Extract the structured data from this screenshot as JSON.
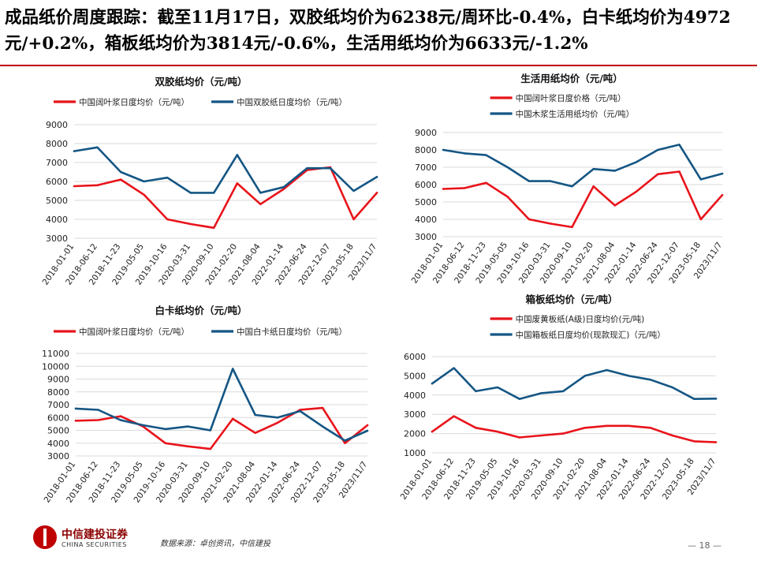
{
  "headline": "成品纸价周度跟踪：截至11月17日，双胶纸均价为6238元/周环比-0.4%，白卡纸均价为4972元/+0.2%，箱板纸均价为3814元/-0.6%，生活用纸均价为6633元/-1.2%",
  "footer": {
    "logo_cn": "中信建投证券",
    "logo_en": "CHINA SECURITIES",
    "source": "数据来源：卓创资讯，中信建投",
    "page": "— 18 —"
  },
  "colors": {
    "red": "#e8141b",
    "blue": "#145684",
    "accent": "#c00000"
  },
  "chart_data": [
    {
      "id": "tl",
      "type": "line",
      "title": "双胶纸均价（元/吨）",
      "x": [
        "2018-01-01",
        "2018-06-12",
        "2018-11-23",
        "2019-05-05",
        "2019-10-16",
        "2020-03-31",
        "2020-09-10",
        "2021-02-20",
        "2021-08-04",
        "2022-01-14",
        "2022-06-24",
        "2022-12-07",
        "2023-05-18",
        "2023/11/7"
      ],
      "ylim": [
        3000,
        9000
      ],
      "yticks": [
        3000,
        4000,
        5000,
        6000,
        7000,
        8000,
        9000
      ],
      "legend_position": "top",
      "series": [
        {
          "name": "中国阔叶浆日度均价（元/吨）",
          "color": "#e8141b",
          "values": [
            5750,
            5800,
            6100,
            5300,
            4000,
            3750,
            3550,
            5900,
            4800,
            5600,
            6600,
            6750,
            4000,
            5400
          ]
        },
        {
          "name": "中国双胶纸日度均价（元/吨）",
          "color": "#145684",
          "values": [
            7600,
            7800,
            6500,
            6000,
            6200,
            5400,
            5400,
            7400,
            5400,
            5700,
            6700,
            6700,
            5500,
            6238
          ]
        }
      ]
    },
    {
      "id": "tr",
      "type": "line",
      "title": "生活用纸均价（元/吨）",
      "x": [
        "2018-01-01",
        "2018-06-12",
        "2018-11-23",
        "2019-05-05",
        "2019-10-16",
        "2020-03-31",
        "2020-09-10",
        "2021-02-20",
        "2021-08-04",
        "2022-01-14",
        "2022-06-24",
        "2022-12-07",
        "2023-05-18",
        "2023/11/7"
      ],
      "ylim": [
        3000,
        9000
      ],
      "yticks": [
        3000,
        4000,
        5000,
        6000,
        7000,
        8000,
        9000
      ],
      "legend_position": "top",
      "series": [
        {
          "name": "中国阔叶浆日度价格（元/吨）",
          "color": "#e8141b",
          "values": [
            5750,
            5800,
            6100,
            5300,
            4000,
            3750,
            3550,
            5900,
            4800,
            5600,
            6600,
            6750,
            4000,
            5400
          ]
        },
        {
          "name": "中国木浆生活用纸均价（元/吨）",
          "color": "#145684",
          "values": [
            8000,
            7800,
            7700,
            7000,
            6200,
            6200,
            5900,
            6900,
            6800,
            7300,
            8000,
            8300,
            6300,
            6633
          ]
        }
      ]
    },
    {
      "id": "bl",
      "type": "line",
      "title": "白卡纸均价（元/吨）",
      "x": [
        "2018-01-01",
        "2018-06-12",
        "2018-11-23",
        "2019-05-05",
        "2019-10-16",
        "2020-03-31",
        "2020-09-10",
        "2021-02-20",
        "2021-08-04",
        "2022-01-14",
        "2022-06-24",
        "2022-12-07",
        "2023-05-18",
        "2023/11/7"
      ],
      "ylim": [
        3000,
        11000
      ],
      "yticks": [
        3000,
        4000,
        5000,
        6000,
        7000,
        8000,
        9000,
        10000,
        11000
      ],
      "legend_position": "top",
      "series": [
        {
          "name": "中国阔叶浆日度均价（元/吨）",
          "color": "#e8141b",
          "values": [
            5750,
            5800,
            6100,
            5300,
            4000,
            3750,
            3550,
            5900,
            4800,
            5600,
            6600,
            6750,
            4000,
            5400
          ]
        },
        {
          "name": "中国白卡纸日度均价（元/吨）",
          "color": "#145684",
          "values": [
            6700,
            6600,
            5800,
            5400,
            5100,
            5300,
            5000,
            9800,
            6200,
            6000,
            6500,
            5300,
            4200,
            4972
          ]
        }
      ]
    },
    {
      "id": "br",
      "type": "line",
      "title": "箱板纸均价（元/吨）",
      "x": [
        "2018-01-01",
        "2018-06-12",
        "2018-11-23",
        "2019-05-05",
        "2019-10-16",
        "2020-03-31",
        "2020-09-10",
        "2021-02-20",
        "2021-08-04",
        "2022-01-14",
        "2022-06-24",
        "2022-12-07",
        "2023-05-18",
        "2023/11/7"
      ],
      "ylim": [
        1000,
        6000
      ],
      "yticks": [
        1000,
        2000,
        3000,
        4000,
        5000,
        6000
      ],
      "legend_position": "top",
      "series": [
        {
          "name": "中国废黄板纸(A级)日度均价(元/吨)",
          "color": "#e8141b",
          "values": [
            2100,
            2900,
            2300,
            2100,
            1800,
            1900,
            2000,
            2300,
            2400,
            2400,
            2300,
            1900,
            1600,
            1550
          ]
        },
        {
          "name": "中国箱板纸日度均价(现款现汇)（元/吨）",
          "color": "#145684",
          "values": [
            4600,
            5400,
            4200,
            4400,
            3800,
            4100,
            4200,
            5000,
            5300,
            5000,
            4800,
            4400,
            3800,
            3814
          ]
        }
      ]
    }
  ]
}
